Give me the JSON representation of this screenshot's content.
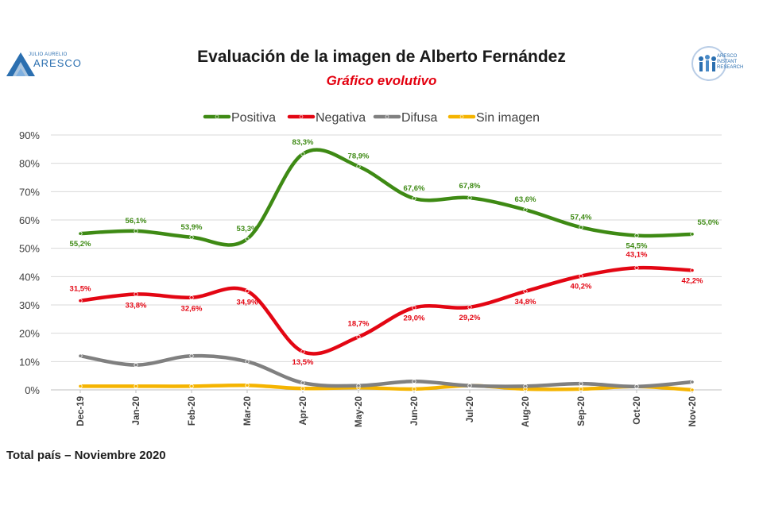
{
  "header": {
    "title": "Evaluación de la imagen de Alberto Fernández",
    "subtitle": "Gráfico evolutivo",
    "logo_left_text": "ARESCO",
    "logo_left_small": "JULIO AURELIO",
    "logo_right_text": "ARESCO INSTANT RESEARCH"
  },
  "footer": {
    "note": "Total país – Noviembre 2020"
  },
  "colors": {
    "positiva": "#3e8a14",
    "negativa": "#e30613",
    "difusa": "#808080",
    "sin_imagen": "#f5b400",
    "grid": "#d9d9d9",
    "axis_text": "#404040",
    "logo_blue": "#2b6fb0"
  },
  "chart_data": {
    "type": "line",
    "title": "Evaluación de la imagen de Alberto Fernández",
    "subtitle": "Gráfico evolutivo",
    "categories": [
      "Dec-19",
      "Jan-20",
      "Feb-20",
      "Mar-20",
      "Apr-20",
      "May-20",
      "Jun-20",
      "Jul-20",
      "Aug-20",
      "Sep-20",
      "Oct-20",
      "Nov-20"
    ],
    "ylim": [
      0,
      90
    ],
    "yticks": [
      "0%",
      "10%",
      "20%",
      "30%",
      "40%",
      "50%",
      "60%",
      "70%",
      "80%",
      "90%"
    ],
    "grid": true,
    "legend_position": "top",
    "series": [
      {
        "name": "Positiva",
        "color": "#3e8a14",
        "values": [
          55.2,
          56.1,
          53.9,
          53.3,
          83.3,
          78.9,
          67.6,
          67.8,
          63.6,
          57.4,
          54.5,
          55.0
        ],
        "labels": [
          "55,2%",
          "56,1%",
          "53,9%",
          "53,3%",
          "83,3%",
          "78,9%",
          "67,6%",
          "67,8%",
          "63,6%",
          "57,4%",
          "54,5%",
          "55,0%"
        ]
      },
      {
        "name": "Negativa",
        "color": "#e30613",
        "values": [
          31.5,
          33.8,
          32.6,
          34.9,
          13.5,
          18.7,
          29.0,
          29.2,
          34.8,
          40.2,
          43.1,
          42.2
        ],
        "labels": [
          "31,5%",
          "33,8%",
          "32,6%",
          "34,9%",
          "13,5%",
          "18,7%",
          "29,0%",
          "29,2%",
          "34,8%",
          "40,2%",
          "43,1%",
          "42,2%"
        ]
      },
      {
        "name": "Difusa",
        "color": "#808080",
        "values": [
          12.0,
          8.8,
          12.0,
          10.0,
          2.5,
          1.5,
          3.0,
          1.5,
          1.3,
          2.2,
          1.2,
          2.8
        ]
      },
      {
        "name": "Sin imagen",
        "color": "#f5b400",
        "values": [
          1.3,
          1.3,
          1.3,
          1.6,
          0.5,
          0.8,
          0.3,
          1.5,
          0.3,
          0.3,
          1.2,
          0.0
        ]
      }
    ]
  }
}
